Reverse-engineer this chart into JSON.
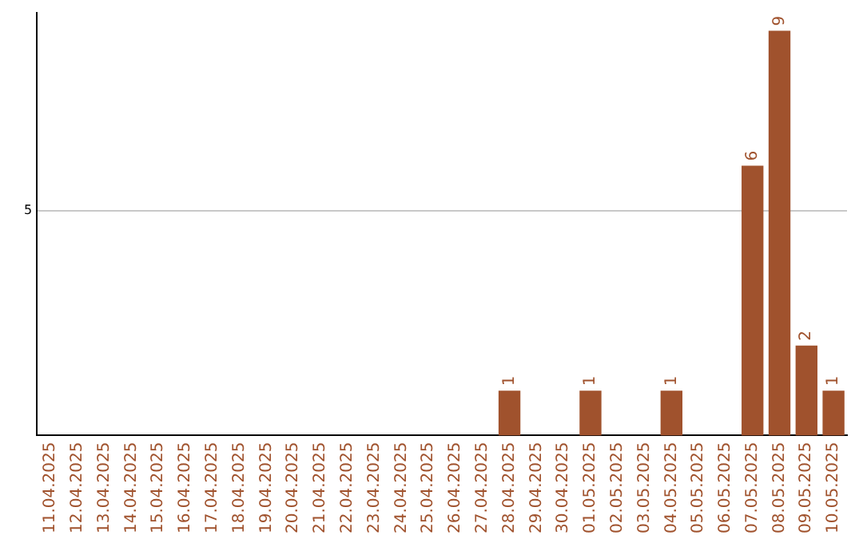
{
  "chart_data": {
    "type": "bar",
    "categories": [
      "11.04.2025",
      "12.04.2025",
      "13.04.2025",
      "14.04.2025",
      "15.04.2025",
      "16.04.2025",
      "17.04.2025",
      "18.04.2025",
      "19.04.2025",
      "20.04.2025",
      "21.04.2025",
      "22.04.2025",
      "23.04.2025",
      "24.04.2025",
      "25.04.2025",
      "26.04.2025",
      "27.04.2025",
      "28.04.2025",
      "29.04.2025",
      "30.04.2025",
      "01.05.2025",
      "02.05.2025",
      "03.05.2025",
      "04.05.2025",
      "05.05.2025",
      "06.05.2025",
      "07.05.2025",
      "08.05.2025",
      "09.05.2025",
      "10.05.2025"
    ],
    "values": [
      null,
      null,
      null,
      null,
      null,
      null,
      null,
      null,
      null,
      null,
      null,
      null,
      null,
      null,
      null,
      null,
      null,
      1,
      null,
      null,
      1,
      null,
      null,
      1,
      null,
      null,
      6,
      9,
      2,
      1
    ],
    "data_labels": true,
    "color": "#a0522d",
    "ylim": [
      0,
      9.4
    ],
    "yticks": [
      5
    ],
    "grid": "y",
    "legend": false
  }
}
